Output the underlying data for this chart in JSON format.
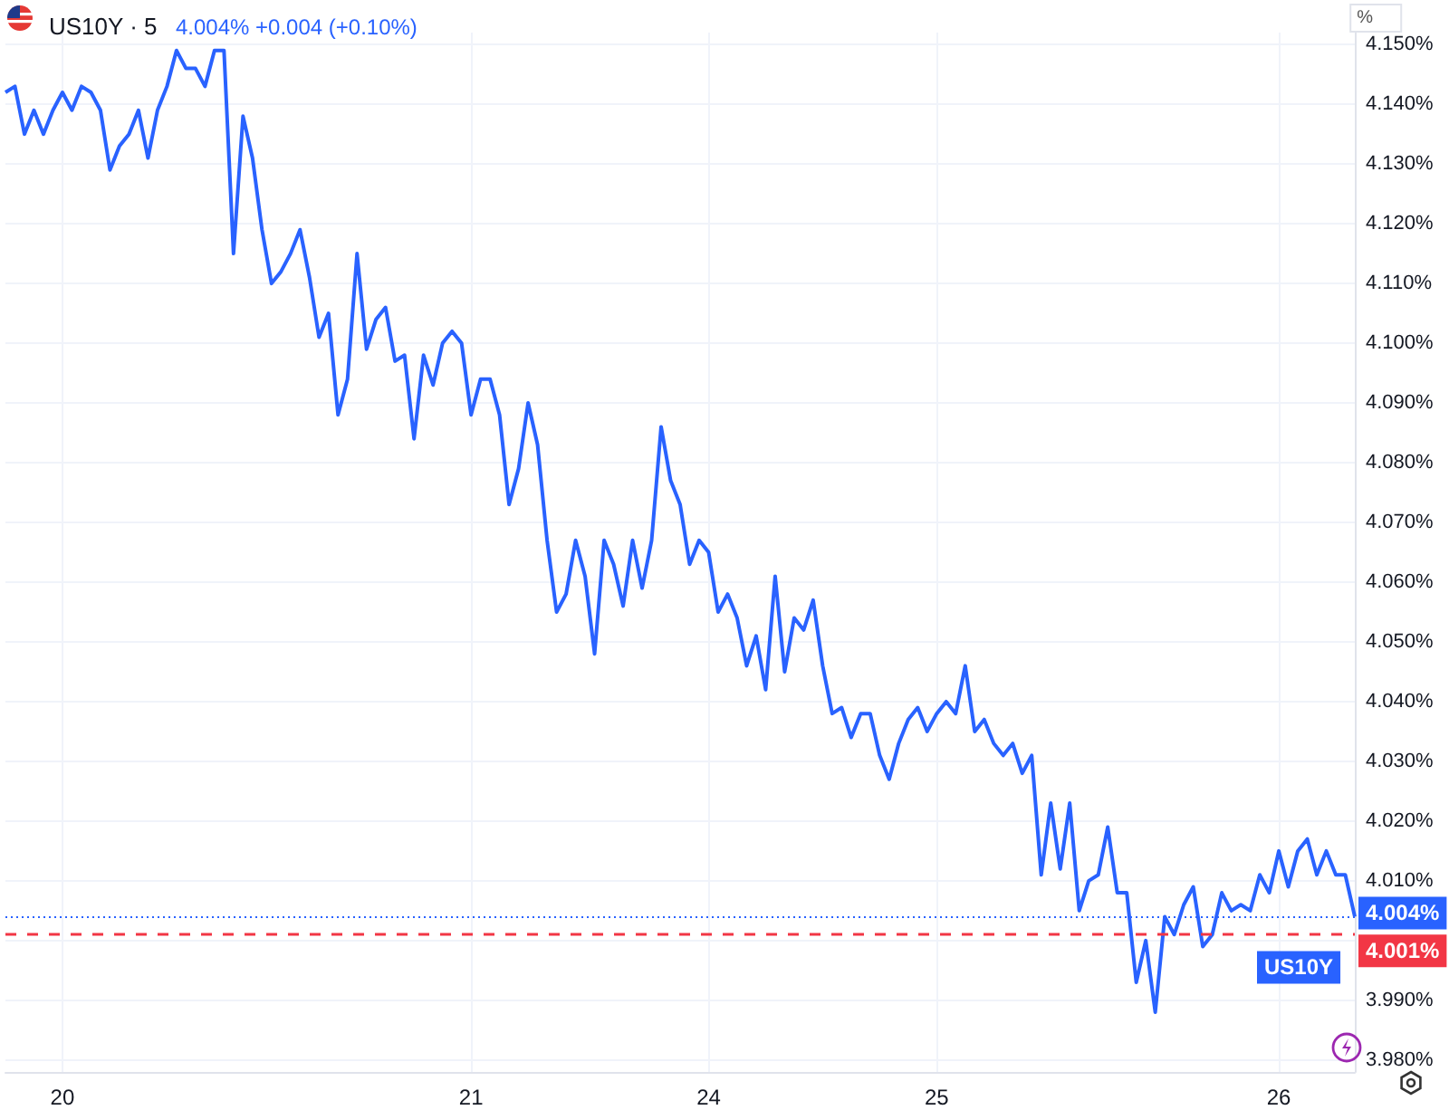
{
  "chart_data": {
    "type": "line",
    "title": "US10Y · 5",
    "subtitle": "4.004% +0.004 (+0.10%)",
    "ylabel": "%",
    "categories": [
      null,
      null,
      null,
      null,
      null,
      null,
      "20",
      null,
      null,
      null,
      null,
      null,
      null,
      null,
      null,
      null,
      null,
      null,
      null,
      null,
      null,
      null,
      null,
      null,
      null,
      null,
      null,
      null,
      null,
      null,
      null,
      null,
      null,
      null,
      null,
      null,
      null,
      null,
      null,
      null,
      null,
      null,
      null,
      null,
      null,
      null,
      null,
      null,
      null,
      "21",
      null,
      null,
      null,
      null,
      null,
      null,
      null,
      null,
      null,
      null,
      null,
      null,
      null,
      null,
      null,
      null,
      null,
      null,
      null,
      null,
      null,
      null,
      null,
      null,
      "24",
      null,
      null,
      null,
      null,
      null,
      null,
      null,
      null,
      null,
      null,
      null,
      null,
      null,
      null,
      null,
      null,
      null,
      null,
      null,
      null,
      null,
      null,
      null,
      "25",
      null,
      null,
      null,
      null,
      null,
      null,
      null,
      null,
      null,
      null,
      null,
      null,
      null,
      null,
      null,
      null,
      null,
      null,
      null,
      null,
      null,
      null,
      null,
      null,
      null,
      null,
      null,
      null,
      null,
      null,
      null,
      null,
      null,
      null,
      null,
      "26",
      null,
      null,
      null,
      null,
      null,
      null,
      null,
      null
    ],
    "series": [
      {
        "name": "US10Y",
        "color": "#2962ff",
        "values": [
          4.142,
          4.143,
          4.135,
          4.139,
          4.135,
          4.139,
          4.142,
          4.139,
          4.143,
          4.142,
          4.139,
          4.129,
          4.133,
          4.135,
          4.139,
          4.131,
          4.139,
          4.143,
          4.149,
          4.146,
          4.146,
          4.143,
          4.149,
          4.149,
          4.115,
          4.138,
          4.131,
          4.119,
          4.11,
          4.112,
          4.115,
          4.119,
          4.111,
          4.101,
          4.105,
          4.088,
          4.094,
          4.115,
          4.099,
          4.104,
          4.106,
          4.097,
          4.098,
          4.084,
          4.098,
          4.093,
          4.1,
          4.102,
          4.1,
          4.088,
          4.094,
          4.094,
          4.088,
          4.073,
          4.079,
          4.09,
          4.083,
          4.067,
          4.055,
          4.058,
          4.067,
          4.061,
          4.048,
          4.067,
          4.063,
          4.056,
          4.067,
          4.059,
          4.067,
          4.086,
          4.077,
          4.073,
          4.063,
          4.067,
          4.065,
          4.055,
          4.058,
          4.054,
          4.046,
          4.051,
          4.042,
          4.061,
          4.045,
          4.054,
          4.052,
          4.057,
          4.046,
          4.038,
          4.039,
          4.034,
          4.038,
          4.038,
          4.031,
          4.027,
          4.033,
          4.037,
          4.039,
          4.035,
          4.038,
          4.04,
          4.038,
          4.046,
          4.035,
          4.037,
          4.033,
          4.031,
          4.033,
          4.028,
          4.031,
          4.011,
          4.023,
          4.012,
          4.023,
          4.005,
          4.01,
          4.011,
          4.019,
          4.008,
          4.008,
          3.993,
          4.0,
          3.988,
          4.004,
          4.001,
          4.006,
          4.009,
          3.999,
          4.001,
          4.008,
          4.005,
          4.006,
          4.005,
          4.011,
          4.008,
          4.015,
          4.009,
          4.015,
          4.017,
          4.011,
          4.015,
          4.011,
          4.011,
          4.004
        ]
      }
    ],
    "ylim": [
      3.978,
      4.152
    ],
    "yticks": [
      {
        "value": 3.98,
        "label": "3.980%"
      },
      {
        "value": 3.99,
        "label": "3.990%"
      },
      {
        "value": 4.0,
        "label": null
      },
      {
        "value": 4.01,
        "label": "4.010%"
      },
      {
        "value": 4.02,
        "label": "4.020%"
      },
      {
        "value": 4.03,
        "label": "4.030%"
      },
      {
        "value": 4.04,
        "label": "4.040%"
      },
      {
        "value": 4.05,
        "label": "4.050%"
      },
      {
        "value": 4.06,
        "label": "4.060%"
      },
      {
        "value": 4.07,
        "label": "4.070%"
      },
      {
        "value": 4.08,
        "label": "4.080%"
      },
      {
        "value": 4.09,
        "label": "4.090%"
      },
      {
        "value": 4.1,
        "label": "4.100%"
      },
      {
        "value": 4.11,
        "label": "4.110%"
      },
      {
        "value": 4.12,
        "label": "4.120%"
      },
      {
        "value": 4.13,
        "label": "4.130%"
      },
      {
        "value": 4.14,
        "label": "4.140%"
      },
      {
        "value": 4.15,
        "label": "4.150%"
      }
    ],
    "ref_lines": [
      {
        "axis": "y",
        "value": 4.004,
        "label": "4.004%",
        "color": "#2962ff",
        "line_style": "dotted"
      },
      {
        "axis": "y",
        "value": 4.001,
        "label": "4.001%",
        "color": "#f23645",
        "line_style": "dashed"
      }
    ],
    "grid": true,
    "marker": "none",
    "line_style": "solid"
  }
}
